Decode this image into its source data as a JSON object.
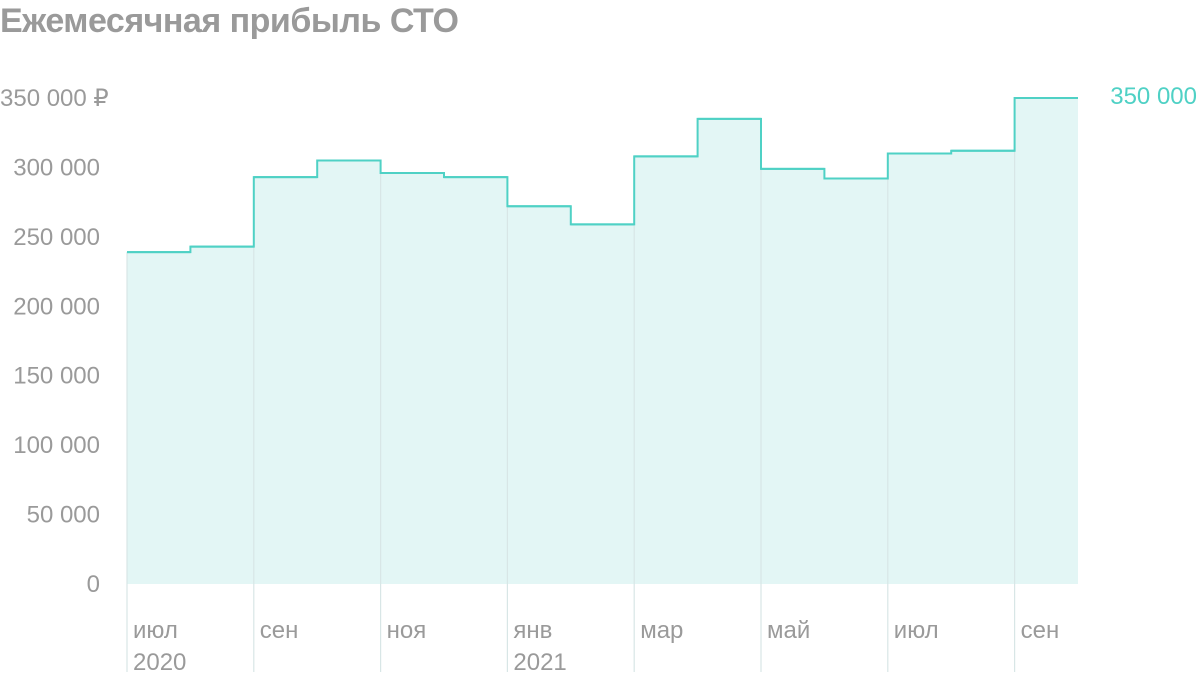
{
  "colors": {
    "line": "#4fd1c5",
    "fill": "#e3f6f5",
    "grid": "#d8e6e6",
    "text": "#9a9a9a"
  },
  "chart_data": {
    "type": "area",
    "step": true,
    "title": "Ежемесячная прибыль СТО",
    "x": [
      "2020-07",
      "2020-08",
      "2020-09",
      "2020-10",
      "2020-11",
      "2020-12",
      "2021-01",
      "2021-02",
      "2021-03",
      "2021-04",
      "2021-05",
      "2021-06",
      "2021-07",
      "2021-08",
      "2021-09"
    ],
    "series": [
      {
        "values": [
          239000,
          243000,
          293000,
          305000,
          296000,
          293000,
          272000,
          259000,
          308000,
          335000,
          299000,
          292000,
          310000,
          312000,
          350000
        ]
      }
    ],
    "ylim": [
      0,
      350000
    ],
    "y_ticks": [
      {
        "value": 350000,
        "label": "350 000 ₽"
      },
      {
        "value": 300000,
        "label": "300 000"
      },
      {
        "value": 250000,
        "label": "250 000"
      },
      {
        "value": 200000,
        "label": "200 000"
      },
      {
        "value": 150000,
        "label": "150 000"
      },
      {
        "value": 100000,
        "label": "100 000"
      },
      {
        "value": 50000,
        "label": "50 000"
      },
      {
        "value": 0,
        "label": "0"
      }
    ],
    "x_ticks": [
      {
        "index": 0,
        "label": "июл",
        "year": "2020"
      },
      {
        "index": 2,
        "label": "сен"
      },
      {
        "index": 4,
        "label": "ноя"
      },
      {
        "index": 6,
        "label": "янв",
        "year": "2021"
      },
      {
        "index": 8,
        "label": "мар"
      },
      {
        "index": 10,
        "label": "май"
      },
      {
        "index": 12,
        "label": "июл"
      },
      {
        "index": 14,
        "label": "сен"
      }
    ],
    "last_value_label": "350 000",
    "grid": "vertical"
  }
}
